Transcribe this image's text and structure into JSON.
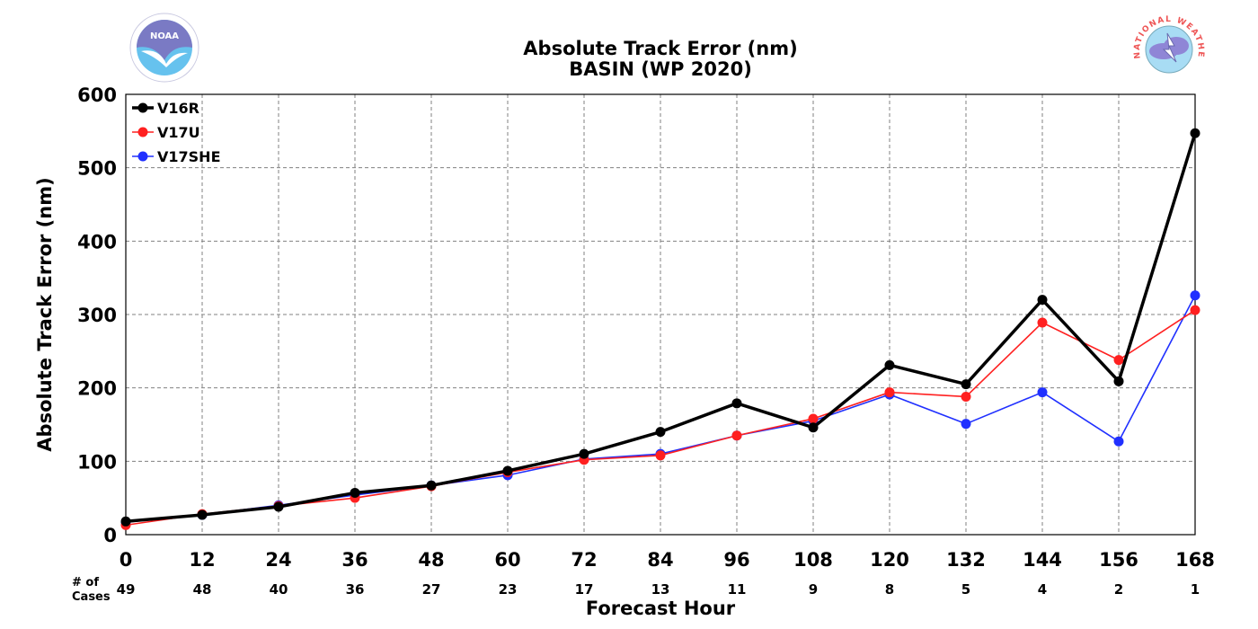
{
  "chart_data": {
    "type": "line",
    "title": "Absolute Track Error (nm)",
    "subtitle": "BASIN (WP 2020)",
    "xlabel": "Forecast Hour",
    "ylabel": "Absolute Track Error (nm)",
    "x": [
      0,
      12,
      24,
      36,
      48,
      60,
      72,
      84,
      96,
      108,
      120,
      132,
      144,
      156,
      168
    ],
    "xlim": [
      0,
      168
    ],
    "ylim": [
      0,
      600
    ],
    "yticks": [
      0,
      100,
      200,
      300,
      400,
      500,
      600
    ],
    "grid": true,
    "legend_position": "top-left",
    "cases_label": "# of\nCases",
    "cases": [
      49,
      48,
      40,
      36,
      27,
      23,
      17,
      13,
      11,
      9,
      8,
      5,
      4,
      2,
      1
    ],
    "series": [
      {
        "name": "V16R",
        "color": "#000000",
        "values": [
          18,
          27,
          38,
          57,
          67,
          87,
          110,
          140,
          179,
          146,
          231,
          205,
          320,
          209,
          547
        ]
      },
      {
        "name": "V17U",
        "color": "#ff2020",
        "values": [
          13,
          28,
          39,
          50,
          66,
          85,
          102,
          108,
          135,
          158,
          194,
          188,
          289,
          238,
          306
        ]
      },
      {
        "name": "V17SHE",
        "color": "#2030ff",
        "values": [
          17,
          27,
          40,
          54,
          67,
          81,
          103,
          110,
          135,
          155,
          191,
          151,
          194,
          127,
          326
        ]
      }
    ]
  },
  "logos": {
    "left": {
      "name": "noaa-logo",
      "text": "NOAA"
    },
    "right": {
      "name": "nws-logo",
      "text": "NATIONAL WEATHER SERVICE"
    }
  }
}
